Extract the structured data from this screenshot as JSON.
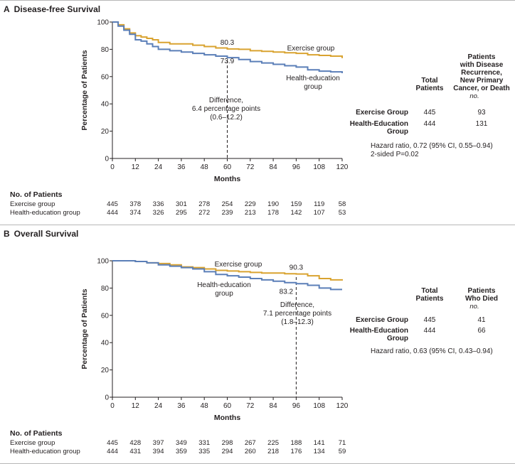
{
  "chart_data": [
    {
      "type": "line",
      "panel_letter": "A",
      "title": "Disease-free Survival",
      "xlabel": "Months",
      "ylabel": "Percentage of Patients",
      "xlim": [
        0,
        120
      ],
      "ylim": [
        0,
        100
      ],
      "x_ticks": [
        0,
        12,
        24,
        36,
        48,
        60,
        72,
        84,
        96,
        108,
        120
      ],
      "y_ticks": [
        0,
        20,
        40,
        60,
        80,
        100
      ],
      "grid": false,
      "series": [
        {
          "name": "Exercise group",
          "color": "#d9a330",
          "x": [
            0,
            3,
            6,
            9,
            12,
            15,
            18,
            21,
            24,
            30,
            36,
            42,
            48,
            54,
            60,
            66,
            72,
            78,
            84,
            90,
            96,
            102,
            108,
            114,
            120
          ],
          "y": [
            100,
            98,
            95,
            92,
            90,
            89,
            88,
            87,
            85,
            84,
            84,
            83,
            82,
            81,
            80.3,
            80,
            79,
            78.5,
            78,
            77.5,
            77,
            76,
            75.5,
            75,
            73.5
          ]
        },
        {
          "name": "Health-education group",
          "color": "#5b7fb8",
          "x": [
            0,
            3,
            6,
            9,
            12,
            15,
            18,
            21,
            24,
            30,
            36,
            42,
            48,
            54,
            60,
            66,
            72,
            78,
            84,
            90,
            96,
            102,
            108,
            114,
            120
          ],
          "y": [
            100,
            97,
            94,
            91,
            87,
            86,
            84,
            82,
            80,
            79,
            78,
            77,
            76,
            75,
            73.9,
            72.5,
            71,
            70,
            69,
            68,
            67,
            65,
            64,
            63.5,
            62.5
          ]
        }
      ],
      "annotations": [
        {
          "text": "80.3",
          "x": 60,
          "y": 80.3,
          "color": "#d9a330"
        },
        {
          "text": "73.9",
          "x": 60,
          "y": 73.9,
          "color": "#5b7fb8"
        },
        {
          "lines": [
            "Difference,",
            "6.4 percentage points",
            "(0.6–12.2)"
          ]
        }
      ],
      "series_labels": [
        {
          "lines": [
            "Exercise group"
          ],
          "color": "#231f20"
        },
        {
          "lines": [
            "Health-education",
            "group"
          ],
          "color": "#231f20"
        }
      ],
      "risk_table": {
        "header": "No. of Patients",
        "rows": [
          {
            "label": "Exercise group",
            "values": [
              445,
              378,
              336,
              301,
              278,
              254,
              229,
              190,
              159,
              119,
              58
            ]
          },
          {
            "label": "Health-education group",
            "values": [
              444,
              374,
              326,
              295,
              272,
              239,
              213,
              178,
              142,
              107,
              53
            ]
          }
        ]
      },
      "summary_table": {
        "col1_header": [
          "Total",
          "Patients"
        ],
        "col2_header": [
          "Patients",
          "with Disease",
          "Recurrence,",
          "New Primary",
          "Cancer, or Death"
        ],
        "unit": "no.",
        "rows": [
          {
            "group": [
              "Exercise Group"
            ],
            "total": "445",
            "events": "93"
          },
          {
            "group": [
              "Health-Education",
              "Group"
            ],
            "total": "444",
            "events": "131"
          }
        ],
        "footnote": [
          "Hazard ratio, 0.72 (95% CI, 0.55–0.94)",
          "2-sided P=0.02"
        ]
      }
    },
    {
      "type": "line",
      "panel_letter": "B",
      "title": "Overall Survival",
      "xlabel": "Months",
      "ylabel": "Percentage of Patients",
      "xlim": [
        0,
        120
      ],
      "ylim": [
        0,
        100
      ],
      "x_ticks": [
        0,
        12,
        24,
        36,
        48,
        60,
        72,
        84,
        96,
        108,
        120
      ],
      "y_ticks": [
        0,
        20,
        40,
        60,
        80,
        100
      ],
      "grid": false,
      "series": [
        {
          "name": "Exercise group",
          "color": "#d9a330",
          "x": [
            0,
            6,
            12,
            18,
            24,
            30,
            36,
            42,
            48,
            54,
            60,
            66,
            72,
            78,
            84,
            90,
            96,
            102,
            108,
            114,
            120
          ],
          "y": [
            100,
            100,
            99.5,
            98.5,
            98,
            97,
            95.5,
            95,
            94,
            93,
            92.5,
            92,
            91.5,
            91,
            91,
            90.5,
            90.3,
            89,
            87,
            86,
            85.5
          ]
        },
        {
          "name": "Health-education group",
          "color": "#5b7fb8",
          "x": [
            0,
            6,
            12,
            18,
            24,
            30,
            36,
            42,
            48,
            54,
            60,
            66,
            72,
            78,
            84,
            90,
            96,
            102,
            108,
            114,
            120
          ],
          "y": [
            100,
            100,
            99.5,
            98.5,
            97,
            96,
            95,
            94,
            92,
            90,
            89,
            88,
            87,
            86,
            85,
            84,
            83.2,
            82,
            80,
            79,
            79
          ]
        }
      ],
      "annotations": [
        {
          "text": "90.3",
          "x": 96,
          "y": 90.3,
          "color": "#d9a330"
        },
        {
          "text": "83.2",
          "x": 96,
          "y": 83.2,
          "color": "#5b7fb8"
        },
        {
          "lines": [
            "Difference,",
            "7.1 percentage points",
            "(1.8–12.3)"
          ]
        }
      ],
      "series_labels": [
        {
          "lines": [
            "Exercise group"
          ],
          "color": "#231f20"
        },
        {
          "lines": [
            "Health-education",
            "group"
          ],
          "color": "#231f20"
        }
      ],
      "risk_table": {
        "header": "No. of Patients",
        "rows": [
          {
            "label": "Exercise group",
            "values": [
              445,
              428,
              397,
              349,
              331,
              298,
              267,
              225,
              188,
              141,
              71
            ]
          },
          {
            "label": "Health-education group",
            "values": [
              444,
              431,
              394,
              359,
              335,
              294,
              260,
              218,
              176,
              134,
              59
            ]
          }
        ]
      },
      "summary_table": {
        "col1_header": [
          "Total",
          "Patients"
        ],
        "col2_header": [
          "Patients",
          "Who Died"
        ],
        "unit": "no.",
        "rows": [
          {
            "group": [
              "Exercise Group"
            ],
            "total": "445",
            "events": "41"
          },
          {
            "group": [
              "Health-Education",
              "Group"
            ],
            "total": "444",
            "events": "66"
          }
        ],
        "footnote": [
          "Hazard ratio, 0.63 (95% CI, 0.43–0.94)"
        ]
      }
    }
  ]
}
